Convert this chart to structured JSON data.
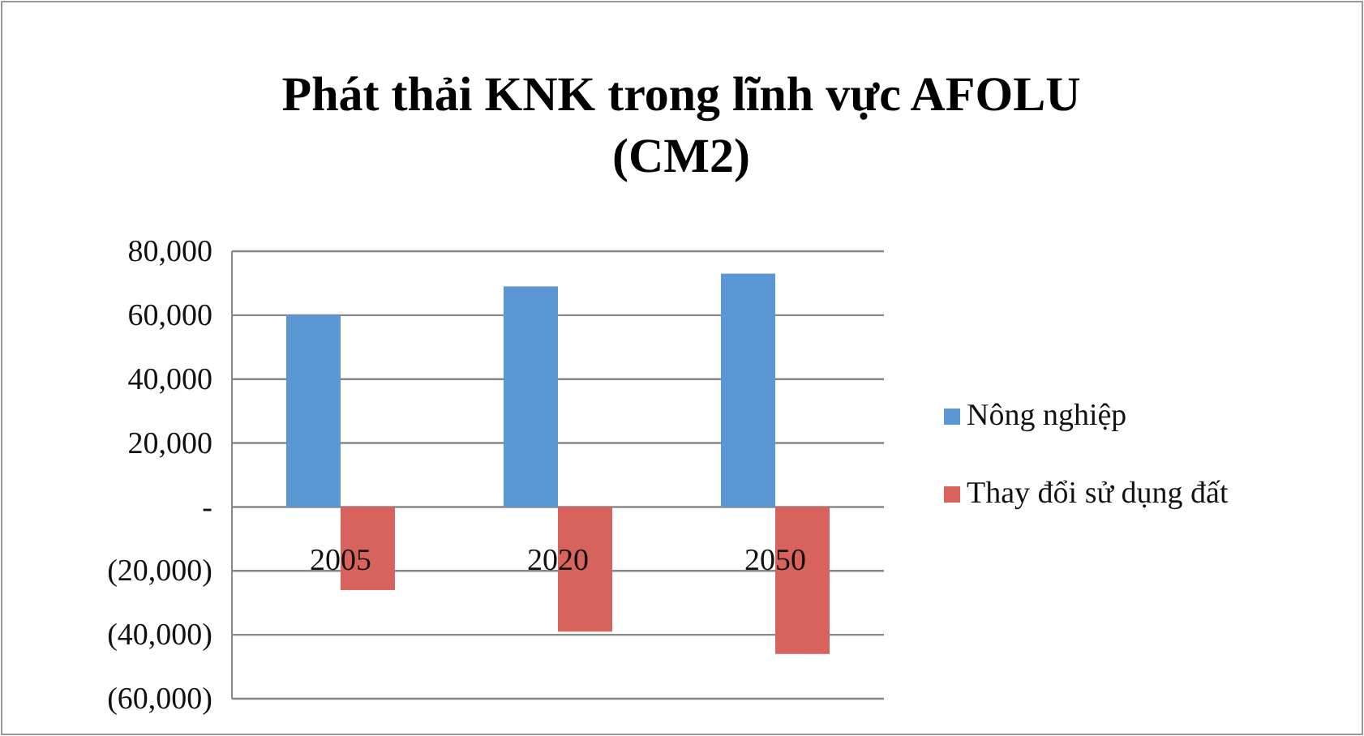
{
  "chart_data": {
    "type": "bar",
    "title": "Phát thải KNK trong lĩnh vực AFOLU (CM2)",
    "categories": [
      "2005",
      "2020",
      "2050"
    ],
    "series": [
      {
        "name": "Nông nghiệp",
        "color": "#5b97d5",
        "values": [
          60000,
          69000,
          73000
        ]
      },
      {
        "name": "Thay đổi sử dụng đất",
        "color": "#d8625c",
        "values": [
          -26000,
          -39000,
          -46000
        ]
      }
    ],
    "ylim": [
      -60000,
      80000
    ],
    "yticks": [
      {
        "value": -60000,
        "label": "(60,000)"
      },
      {
        "value": -40000,
        "label": "(40,000)"
      },
      {
        "value": -20000,
        "label": "(20,000)"
      },
      {
        "value": 0,
        "label": "-"
      },
      {
        "value": 20000,
        "label": "20,000"
      },
      {
        "value": 40000,
        "label": "40,000"
      },
      {
        "value": 60000,
        "label": "60,000"
      },
      {
        "value": 80000,
        "label": "80,000"
      }
    ],
    "grid": "y",
    "legend": "right"
  }
}
